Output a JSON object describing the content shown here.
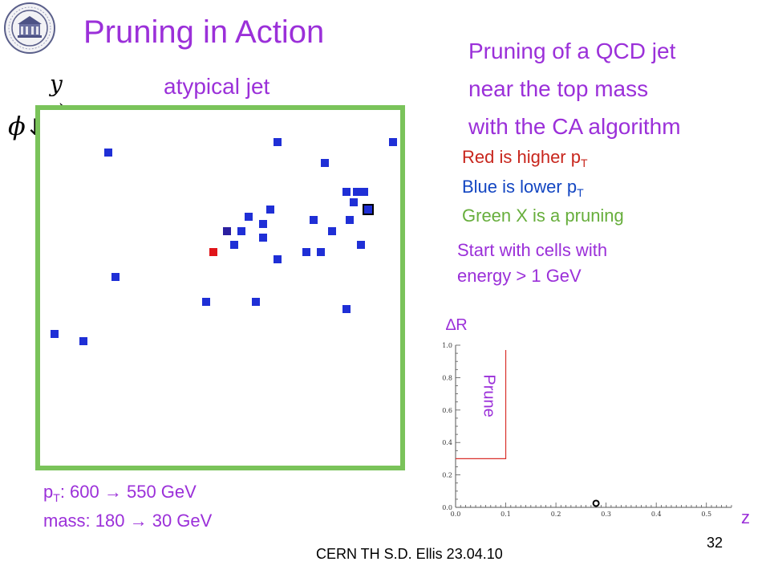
{
  "title": "Pruning in Action",
  "subtitle_lines": [
    "Pruning of a QCD jet",
    "near the top mass",
    "with the CA algorithm"
  ],
  "atypical_label": "atypical jet",
  "axes_labels": {
    "y": "y",
    "phi": "ϕ"
  },
  "legend": {
    "red": {
      "text": "Red is higher p",
      "sub": "T"
    },
    "blue": {
      "text": "Blue is lower p",
      "sub": "T"
    },
    "green": {
      "text": "Green X is a pruning"
    }
  },
  "start_lines": [
    "Start with cells with",
    "energy > 1 GeV"
  ],
  "pt": {
    "prefix": "p",
    "sub": "T",
    "text": ": 600 → 550 GeV"
  },
  "mass": "mass: 180 → 30 GeV",
  "footer": "CERN TH     S.D. Ellis     23.04.10",
  "page_number": "32",
  "colors": {
    "title": "#9b30d9",
    "frame": "#7ac35a",
    "blue_cell": "#1f2fd6",
    "dark_cell": "#2b1fa0",
    "red_cell": "#e0151a",
    "prune_line": "#d9302b"
  },
  "jet_cells": [
    {
      "y": 0.66,
      "phi": 0.09,
      "kind": "blue"
    },
    {
      "y": 0.98,
      "phi": 0.09,
      "kind": "blue"
    },
    {
      "y": 0.19,
      "phi": 0.12,
      "kind": "blue"
    },
    {
      "y": 0.79,
      "phi": 0.15,
      "kind": "blue"
    },
    {
      "y": 0.85,
      "phi": 0.23,
      "kind": "blue"
    },
    {
      "y": 0.88,
      "phi": 0.23,
      "kind": "blue"
    },
    {
      "y": 0.9,
      "phi": 0.23,
      "kind": "blue"
    },
    {
      "y": 0.87,
      "phi": 0.26,
      "kind": "blue"
    },
    {
      "y": 0.91,
      "phi": 0.28,
      "kind": "selected"
    },
    {
      "y": 0.64,
      "phi": 0.28,
      "kind": "blue"
    },
    {
      "y": 0.58,
      "phi": 0.3,
      "kind": "blue"
    },
    {
      "y": 0.76,
      "phi": 0.31,
      "kind": "blue"
    },
    {
      "y": 0.86,
      "phi": 0.31,
      "kind": "blue"
    },
    {
      "y": 0.62,
      "phi": 0.32,
      "kind": "blue"
    },
    {
      "y": 0.52,
      "phi": 0.34,
      "kind": "dark"
    },
    {
      "y": 0.56,
      "phi": 0.34,
      "kind": "blue"
    },
    {
      "y": 0.81,
      "phi": 0.34,
      "kind": "blue"
    },
    {
      "y": 0.62,
      "phi": 0.36,
      "kind": "blue"
    },
    {
      "y": 0.54,
      "phi": 0.38,
      "kind": "blue"
    },
    {
      "y": 0.89,
      "phi": 0.38,
      "kind": "blue"
    },
    {
      "y": 0.48,
      "phi": 0.4,
      "kind": "red"
    },
    {
      "y": 0.74,
      "phi": 0.4,
      "kind": "blue"
    },
    {
      "y": 0.78,
      "phi": 0.4,
      "kind": "blue"
    },
    {
      "y": 0.66,
      "phi": 0.42,
      "kind": "blue"
    },
    {
      "y": 0.21,
      "phi": 0.47,
      "kind": "blue"
    },
    {
      "y": 0.46,
      "phi": 0.54,
      "kind": "blue"
    },
    {
      "y": 0.6,
      "phi": 0.54,
      "kind": "blue"
    },
    {
      "y": 0.85,
      "phi": 0.56,
      "kind": "blue"
    },
    {
      "y": 0.04,
      "phi": 0.63,
      "kind": "blue"
    },
    {
      "y": 0.12,
      "phi": 0.65,
      "kind": "blue"
    }
  ],
  "prune_chart": {
    "ylabel": "∆R",
    "xlabel": "z",
    "xlim": [
      0.0,
      0.55
    ],
    "ylim": [
      0.0,
      1.0
    ],
    "x_ticks": [
      "0.0",
      "0.1",
      "0.2",
      "0.3",
      "0.4",
      "0.5"
    ],
    "y_ticks": [
      "0.0",
      "0.2",
      "0.4",
      "0.6",
      "0.8",
      "1.0"
    ],
    "prune_label": "Prune",
    "prune_boundary": {
      "z_cut": 0.1,
      "dr_low": 0.3,
      "dr_high": 0.97
    },
    "point": {
      "z": 0.28,
      "dr": 0.01
    }
  }
}
